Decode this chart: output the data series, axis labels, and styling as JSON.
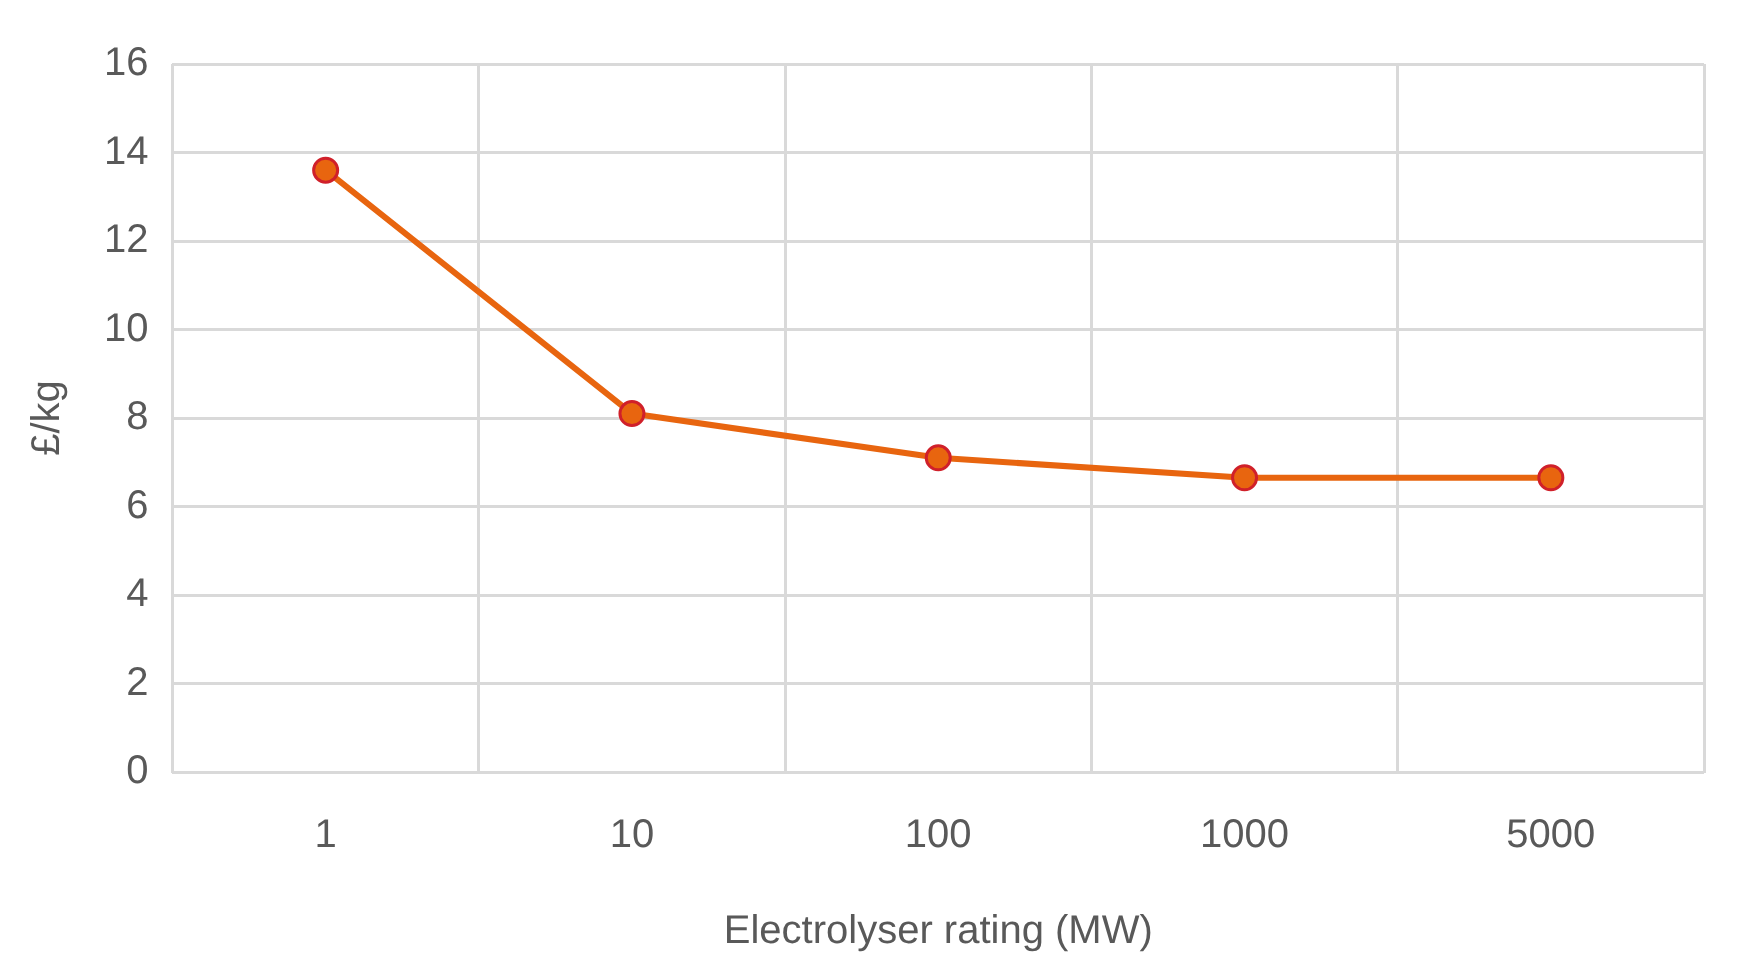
{
  "chart_data": {
    "type": "line",
    "xlabel": "Electrolyser rating (MW)",
    "ylabel": "£/kg",
    "categories": [
      "1",
      "10",
      "100",
      "1000",
      "5000"
    ],
    "series": [
      {
        "color": "#e8650f",
        "values": [
          13.6,
          8.1,
          7.1,
          6.65,
          6.65
        ]
      }
    ],
    "ylim": [
      0,
      16
    ],
    "yticks": [
      0,
      2,
      4,
      6,
      8,
      10,
      12,
      14,
      16
    ],
    "grid": true,
    "legend": false,
    "marker": "circle",
    "line_style": "solid"
  }
}
